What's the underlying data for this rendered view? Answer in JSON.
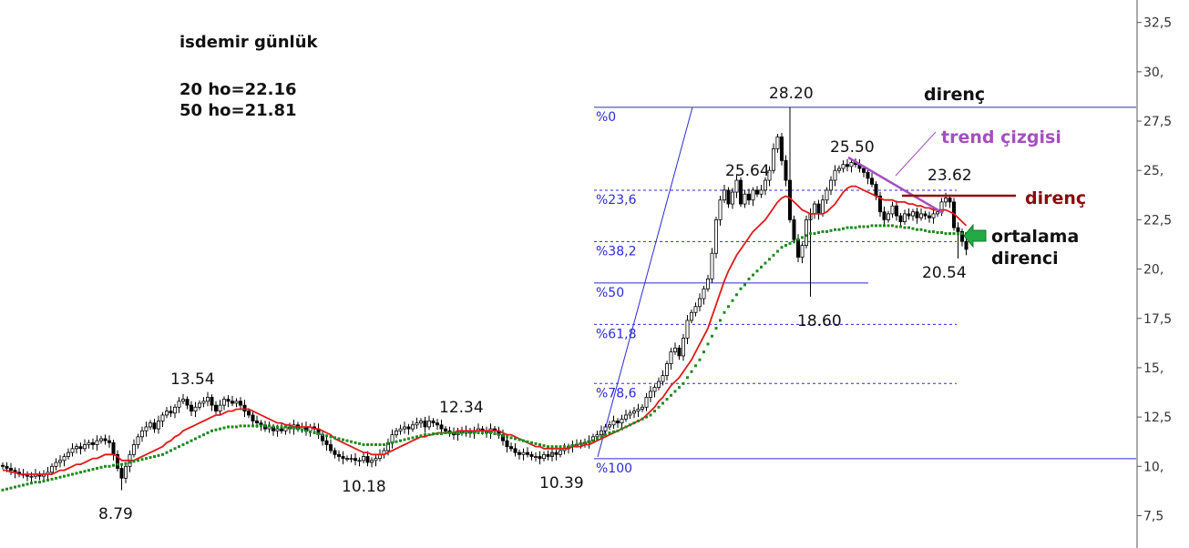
{
  "chart_data": {
    "type": "candlestick",
    "y_axis": {
      "min": 6.0,
      "max": 33.5,
      "position": "right",
      "ticks": [
        {
          "value": 7.5,
          "label": "7,5"
        },
        {
          "value": 10,
          "label": "10,"
        },
        {
          "value": 12.5,
          "label": "12,5"
        },
        {
          "value": 15,
          "label": "15,"
        },
        {
          "value": 17.5,
          "label": "17,5"
        },
        {
          "value": 20,
          "label": "20,"
        },
        {
          "value": 22.5,
          "label": "22,5"
        },
        {
          "value": 25,
          "label": "25,"
        },
        {
          "value": 27.5,
          "label": "27,5"
        },
        {
          "value": 30,
          "label": "30,"
        },
        {
          "value": 32.5,
          "label": "32,5"
        }
      ]
    },
    "header": {
      "title": "isdemir günlük",
      "ma20_text": "20 ho=22.16",
      "ma50_text": "50 ho=21.81"
    },
    "price_labels": [
      {
        "label": "13.54",
        "value": 13.54
      },
      {
        "label": "8.79",
        "value": 8.79
      },
      {
        "label": "10.18",
        "value": 10.18
      },
      {
        "label": "12.34",
        "value": 12.34
      },
      {
        "label": "10.39",
        "value": 10.39
      },
      {
        "label": "28.20",
        "value": 28.2
      },
      {
        "label": "25.64",
        "value": 25.64
      },
      {
        "label": "25.50",
        "value": 25.5
      },
      {
        "label": "23.62",
        "value": 23.62
      },
      {
        "label": "18.60",
        "value": 18.6
      },
      {
        "label": "20.54",
        "value": 20.54
      }
    ],
    "fibonacci": {
      "high": 28.2,
      "low": 10.39,
      "levels": [
        {
          "label": "%0",
          "ratio": 0.0
        },
        {
          "label": "%23,6",
          "ratio": 0.236
        },
        {
          "label": "%38,2",
          "ratio": 0.382
        },
        {
          "label": "%50",
          "ratio": 0.5
        },
        {
          "label": "%61,8",
          "ratio": 0.618
        },
        {
          "label": "%78,6",
          "ratio": 0.786
        },
        {
          "label": "%100",
          "ratio": 1.0
        }
      ]
    },
    "annotations": {
      "resistance_top": "direnç",
      "trend_line": "trend çizgisi",
      "resistance_mid": "direnç",
      "ma_resistance_line1": "ortalama",
      "ma_resistance_line2": "direnci"
    },
    "series": [
      {
        "kind": "candles",
        "closes": [
          10.0,
          9.9,
          9.8,
          9.7,
          9.6,
          9.6,
          9.5,
          9.5,
          9.6,
          9.5,
          9.6,
          9.7,
          10.0,
          10.2,
          10.3,
          10.5,
          10.7,
          10.9,
          11.0,
          10.9,
          11.1,
          11.2,
          11.1,
          11.3,
          11.4,
          11.3,
          11.2,
          10.6,
          9.9,
          9.4,
          10.0,
          10.6,
          11.1,
          11.5,
          11.8,
          12.0,
          12.2,
          11.9,
          12.3,
          12.6,
          12.8,
          12.7,
          13.0,
          13.3,
          13.4,
          13.1,
          12.8,
          13.0,
          13.2,
          13.3,
          13.5,
          13.1,
          12.8,
          13.1,
          13.4,
          13.3,
          13.2,
          13.3,
          13.1,
          12.8,
          12.6,
          12.3,
          12.2,
          12.1,
          11.9,
          12.0,
          11.8,
          11.9,
          11.8,
          12.0,
          11.9,
          12.1,
          11.9,
          12.0,
          11.8,
          12.0,
          11.9,
          11.6,
          11.3,
          11.1,
          10.8,
          10.6,
          10.5,
          10.4,
          10.4,
          10.4,
          10.3,
          10.3,
          10.5,
          10.2,
          10.3,
          10.4,
          10.6,
          10.8,
          11.2,
          11.6,
          11.8,
          11.9,
          12.0,
          11.9,
          12.1,
          12.2,
          12.3,
          12.0,
          12.3,
          12.2,
          12.1,
          11.9,
          11.8,
          11.7,
          11.6,
          11.8,
          11.7,
          11.8,
          11.7,
          11.8,
          11.9,
          11.8,
          11.7,
          11.9,
          11.8,
          11.6,
          11.3,
          11.0,
          10.9,
          10.7,
          10.6,
          10.7,
          10.6,
          10.5,
          10.5,
          10.4,
          10.6,
          10.5,
          10.7,
          10.6,
          10.8,
          10.9,
          11.0,
          11.1,
          11.1,
          11.2,
          11.2,
          11.3,
          11.5,
          11.6,
          11.8,
          12.0,
          12.1,
          12.3,
          12.2,
          12.4,
          12.6,
          12.7,
          12.8,
          12.9,
          13.0,
          13.5,
          13.8,
          14.0,
          14.3,
          14.6,
          15.2,
          15.8,
          16.0,
          15.6,
          16.5,
          17.4,
          17.8,
          18.1,
          18.5,
          19.0,
          19.5,
          20.8,
          22.5,
          23.5,
          24.0,
          23.3,
          23.9,
          24.5,
          23.3,
          23.8,
          23.5,
          24.0,
          23.8,
          24.0,
          24.5,
          25.0,
          26.1,
          26.7,
          25.5,
          24.5,
          22.5,
          21.5,
          20.6,
          21.2,
          22.5,
          22.8,
          23.3,
          22.8,
          23.5,
          24.0,
          24.5,
          25.0,
          25.1,
          25.3,
          25.2,
          25.4,
          25.3,
          25.1,
          24.9,
          24.6,
          24.3,
          23.7,
          22.9,
          22.5,
          22.8,
          23.2,
          22.7,
          22.4,
          22.8,
          22.7,
          22.9,
          22.6,
          22.8,
          22.7,
          22.6,
          22.8,
          22.9,
          23.4,
          23.6,
          23.4,
          22.1,
          21.9,
          21.4,
          21.0
        ]
      },
      {
        "kind": "line",
        "values": [
          9.8,
          9.8,
          9.7,
          9.7,
          9.6,
          9.6,
          9.6,
          9.6,
          9.6,
          9.6,
          9.6,
          9.6,
          9.6,
          9.7,
          9.8,
          9.8,
          9.9,
          10.0,
          10.1,
          10.1,
          10.2,
          10.3,
          10.4,
          10.4,
          10.5,
          10.6,
          10.6,
          10.6,
          10.5,
          10.3,
          10.3,
          10.3,
          10.3,
          10.4,
          10.5,
          10.6,
          10.7,
          10.8,
          10.9,
          11.0,
          11.2,
          11.3,
          11.5,
          11.6,
          11.8,
          11.9,
          12.0,
          12.1,
          12.2,
          12.3,
          12.4,
          12.5,
          12.6,
          12.6,
          12.7,
          12.8,
          12.8,
          12.9,
          12.9,
          12.9,
          12.9,
          12.8,
          12.7,
          12.6,
          12.5,
          12.4,
          12.3,
          12.2,
          12.2,
          12.1,
          12.1,
          12.0,
          12.0,
          12.0,
          12.0,
          12.0,
          11.9,
          11.9,
          11.8,
          11.7,
          11.6,
          11.4,
          11.3,
          11.2,
          11.1,
          11.0,
          10.9,
          10.8,
          10.7,
          10.7,
          10.6,
          10.6,
          10.6,
          10.6,
          10.7,
          10.8,
          10.9,
          11.0,
          11.1,
          11.2,
          11.3,
          11.4,
          11.5,
          11.5,
          11.6,
          11.6,
          11.7,
          11.7,
          11.7,
          11.7,
          11.7,
          11.8,
          11.8,
          11.8,
          11.8,
          11.8,
          11.8,
          11.8,
          11.8,
          11.8,
          11.8,
          11.8,
          11.7,
          11.6,
          11.6,
          11.5,
          11.4,
          11.3,
          11.2,
          11.1,
          11.0,
          11.0,
          10.9,
          10.9,
          10.9,
          10.9,
          10.9,
          10.9,
          10.9,
          11.0,
          11.0,
          11.0,
          11.1,
          11.1,
          11.2,
          11.3,
          11.4,
          11.5,
          11.6,
          11.7,
          11.8,
          11.9,
          12.0,
          12.1,
          12.2,
          12.3,
          12.4,
          12.6,
          12.8,
          13.0,
          13.3,
          13.5,
          13.8,
          14.1,
          14.3,
          14.5,
          14.8,
          15.1,
          15.4,
          15.8,
          16.2,
          16.6,
          17.0,
          17.6,
          18.2,
          18.8,
          19.4,
          19.9,
          20.3,
          20.7,
          21.0,
          21.3,
          21.6,
          21.9,
          22.1,
          22.3,
          22.5,
          22.8,
          23.1,
          23.4,
          23.6,
          23.7,
          23.6,
          23.4,
          23.2,
          23.0,
          22.9,
          22.8,
          22.8,
          22.8,
          22.8,
          22.9,
          23.1,
          23.3,
          23.6,
          23.9,
          24.1,
          24.2,
          24.2,
          24.1,
          24.0,
          23.9,
          23.8,
          23.7,
          23.6,
          23.5,
          23.5,
          23.5,
          23.4,
          23.4,
          23.4,
          23.3,
          23.3,
          23.2,
          23.2,
          23.1,
          23.1,
          23.0,
          23.0,
          23.0,
          23.0,
          22.9,
          22.8,
          22.6,
          22.4,
          22.2
        ]
      },
      {
        "kind": "line",
        "values": [
          8.8,
          8.85,
          8.9,
          8.95,
          9.0,
          9.05,
          9.1,
          9.15,
          9.2,
          9.2,
          9.25,
          9.3,
          9.35,
          9.4,
          9.45,
          9.5,
          9.55,
          9.6,
          9.65,
          9.7,
          9.75,
          9.8,
          9.85,
          9.9,
          9.95,
          10.0,
          10.0,
          10.05,
          10.1,
          10.1,
          10.15,
          10.2,
          10.25,
          10.3,
          10.35,
          10.4,
          10.45,
          10.5,
          10.55,
          10.6,
          10.7,
          10.8,
          10.9,
          11.0,
          11.1,
          11.2,
          11.3,
          11.4,
          11.5,
          11.6,
          11.7,
          11.8,
          11.85,
          11.9,
          11.95,
          12.0,
          12.0,
          12.0,
          12.05,
          12.05,
          12.05,
          12.05,
          12.05,
          12.05,
          12.05,
          12.05,
          12.0,
          12.0,
          12.0,
          12.0,
          11.95,
          11.95,
          11.9,
          11.85,
          11.8,
          11.75,
          11.7,
          11.65,
          11.6,
          11.55,
          11.5,
          11.45,
          11.4,
          11.35,
          11.3,
          11.25,
          11.2,
          11.15,
          11.1,
          11.1,
          11.1,
          11.1,
          11.1,
          11.1,
          11.15,
          11.2,
          11.25,
          11.3,
          11.35,
          11.4,
          11.45,
          11.5,
          11.55,
          11.6,
          11.6,
          11.65,
          11.65,
          11.65,
          11.7,
          11.7,
          11.7,
          11.7,
          11.7,
          11.7,
          11.7,
          11.7,
          11.7,
          11.7,
          11.7,
          11.7,
          11.65,
          11.6,
          11.55,
          11.5,
          11.45,
          11.4,
          11.35,
          11.3,
          11.25,
          11.2,
          11.15,
          11.1,
          11.05,
          11.0,
          11.0,
          11.0,
          11.0,
          11.0,
          11.0,
          11.05,
          11.1,
          11.15,
          11.2,
          11.25,
          11.3,
          11.4,
          11.5,
          11.6,
          11.7,
          11.75,
          11.8,
          11.9,
          12.0,
          12.1,
          12.2,
          12.3,
          12.4,
          12.5,
          12.6,
          12.8,
          13.0,
          13.2,
          13.4,
          13.6,
          13.8,
          14.0,
          14.2,
          14.5,
          14.8,
          15.1,
          15.4,
          15.8,
          16.2,
          16.6,
          17.0,
          17.4,
          17.8,
          18.1,
          18.4,
          18.7,
          19.0,
          19.2,
          19.5,
          19.7,
          19.9,
          20.1,
          20.3,
          20.5,
          20.7,
          20.9,
          21.1,
          21.2,
          21.3,
          21.4,
          21.5,
          21.6,
          21.7,
          21.8,
          21.8,
          21.85,
          21.9,
          21.9,
          21.95,
          22.0,
          22.0,
          22.05,
          22.1,
          22.1,
          22.1,
          22.15,
          22.15,
          22.15,
          22.2,
          22.2,
          22.2,
          22.2,
          22.2,
          22.2,
          22.15,
          22.15,
          22.1,
          22.1,
          22.05,
          22.0,
          22.0,
          21.95,
          21.9,
          21.9,
          21.85,
          21.85,
          21.8,
          21.8,
          21.8,
          21.8,
          21.8,
          21.8,
          21.8,
          21.8,
          21.8
        ]
      }
    ],
    "colors": {
      "up_candle": "#ffffff",
      "down_candle": "#000000",
      "ma20": "#e01a1a",
      "ma50": "#1e8c1e",
      "fib": "#2b2bd6",
      "trend": "#a44fbf",
      "resistance": "#8b0a0a",
      "arrow": "#22aa44"
    }
  }
}
